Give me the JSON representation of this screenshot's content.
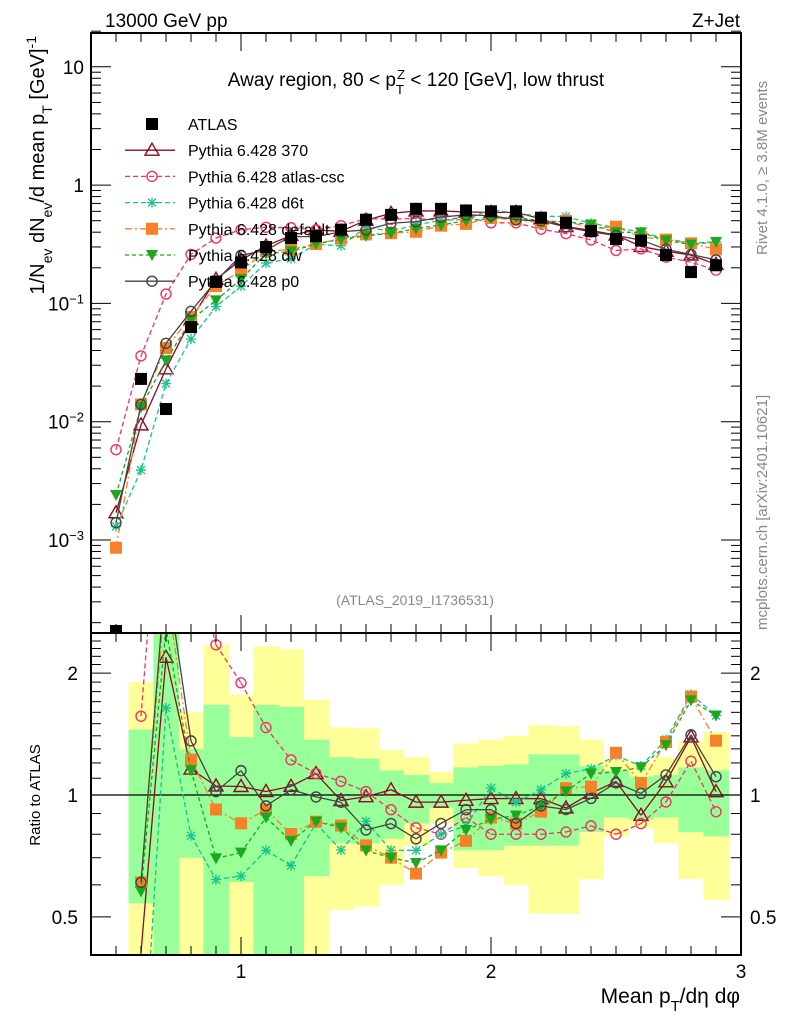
{
  "header": {
    "left": "13000 GeV pp",
    "right": "Z+Jet"
  },
  "side_labels": {
    "rivet": "Rivet 4.1.0, ≥ 3.8M events",
    "mcplots": "mcplots.cern.ch [arXiv:2401.10621]"
  },
  "analysis_id": "(ATLAS_2019_I1736531)",
  "chart_data": {
    "type": "line",
    "title_parts": [
      "Away region, 80 < p",
      "T",
      "Z",
      " < 120 [GeV], low thrust"
    ],
    "ylabel_parts": [
      "1/N",
      "ev",
      " dN",
      "ev",
      "/d mean p",
      "T",
      " [GeV]",
      "-1"
    ],
    "xlabel_parts": [
      "Mean p",
      "T",
      "/dη dφ"
    ],
    "ratio_ylabel": "Ratio to ATLAS",
    "x": [
      0.5,
      0.6,
      0.7,
      0.8,
      0.9,
      1.0,
      1.1,
      1.2,
      1.3,
      1.4,
      1.5,
      1.6,
      1.7,
      1.8,
      1.9,
      2.0,
      2.1,
      2.2,
      2.3,
      2.4,
      2.5,
      2.6,
      2.7,
      2.8,
      2.9
    ],
    "xlim": [
      0.4,
      3.0
    ],
    "ylim": [
      0.00016,
      29
    ],
    "yscale": "log",
    "ratio_ylim": [
      0.4,
      2.5
    ],
    "ratio_yscale": "log",
    "x_ticks": [
      "1",
      "2",
      "3"
    ],
    "y_ticks": [
      {
        "base": "10",
        "exp": ""
      },
      {
        "base": "1",
        "exp": ""
      },
      {
        "base": "10",
        "exp": "−1"
      },
      {
        "base": "10",
        "exp": "−2"
      },
      {
        "base": "10",
        "exp": "−3"
      }
    ],
    "ratio_ticks": [
      "2",
      "1",
      "0.5"
    ],
    "reference": {
      "name": "ATLAS",
      "values": [
        0.00017,
        0.023,
        0.0128,
        0.063,
        0.152,
        0.222,
        0.3,
        0.357,
        0.37,
        0.42,
        0.51,
        0.56,
        0.63,
        0.63,
        0.61,
        0.6,
        0.6,
        0.53,
        0.48,
        0.41,
        0.35,
        0.34,
        0.256,
        0.184,
        0.21
      ],
      "band_inner": [
        null,
        [
          0.54,
          1.45
        ],
        [
          0.35,
          2.6
        ],
        [
          0.7,
          1.3
        ],
        [
          0.35,
          1.67
        ],
        [
          0.61,
          1.39
        ],
        [
          0.35,
          1.67
        ],
        [
          0.35,
          1.65
        ],
        [
          0.63,
          1.37
        ],
        [
          0.76,
          1.24
        ],
        [
          0.76,
          1.23
        ],
        [
          0.78,
          1.15
        ],
        [
          0.85,
          1.12
        ],
        [
          0.93,
          1.07
        ],
        [
          0.73,
          1.17
        ],
        [
          0.73,
          1.18
        ],
        [
          0.75,
          1.19
        ],
        [
          0.75,
          1.26
        ],
        [
          0.75,
          1.26
        ],
        [
          0.81,
          1.18
        ],
        [
          0.88,
          1.15
        ],
        [
          0.87,
          1.11
        ],
        [
          0.88,
          1.12
        ],
        [
          0.81,
          1.17
        ],
        [
          0.79,
          1.15
        ]
      ],
      "band_outer": [
        null,
        [
          0.35,
          1.9
        ],
        [
          0.35,
          2.6
        ],
        [
          0.35,
          1.6
        ],
        [
          0.35,
          2.35
        ],
        [
          0.35,
          1.77
        ],
        [
          0.35,
          2.33
        ],
        [
          0.35,
          2.29
        ],
        [
          0.35,
          1.72
        ],
        [
          0.52,
          1.47
        ],
        [
          0.53,
          1.46
        ],
        [
          0.6,
          1.29
        ],
        [
          0.75,
          1.24
        ],
        [
          0.85,
          1.14
        ],
        [
          0.66,
          1.34
        ],
        [
          0.63,
          1.37
        ],
        [
          0.6,
          1.4
        ],
        [
          0.51,
          1.49
        ],
        [
          0.51,
          1.48
        ],
        [
          0.62,
          1.37
        ],
        [
          0.79,
          1.22
        ],
        [
          0.83,
          1.2
        ],
        [
          0.76,
          1.24
        ],
        [
          0.62,
          1.36
        ],
        [
          0.55,
          1.43
        ]
      ],
      "inner_color": "#99ff99",
      "outer_color": "#ffff99"
    },
    "series": [
      {
        "name": "Pythia 6.428 370",
        "color": "#8c0a24",
        "marker": "triangle-open",
        "dash": "",
        "values": [
          0.0017,
          0.0094,
          0.028,
          0.073,
          0.16,
          0.233,
          0.306,
          0.375,
          0.418,
          0.407,
          0.505,
          0.577,
          0.605,
          0.605,
          0.592,
          0.588,
          0.588,
          0.519,
          0.446,
          0.414,
          0.378,
          0.303,
          0.276,
          0.256,
          0.214
        ]
      },
      {
        "name": "Pythia 6.428 atlas-csc",
        "color": "#f03366",
        "marker": "circle-open",
        "dash": "5,3",
        "values": [
          0.0058,
          0.036,
          0.12,
          0.26,
          0.357,
          0.42,
          0.44,
          0.436,
          0.418,
          0.454,
          0.52,
          0.515,
          0.523,
          0.504,
          0.537,
          0.48,
          0.48,
          0.424,
          0.389,
          0.344,
          0.28,
          0.289,
          0.246,
          0.223,
          0.191
        ]
      },
      {
        "name": "Pythia 6.428 d6t",
        "color": "#17c48a",
        "marker": "star",
        "dash": "5,3",
        "values": [
          0.0013,
          0.0039,
          0.021,
          0.05,
          0.094,
          0.14,
          0.219,
          0.239,
          0.315,
          0.307,
          0.439,
          0.409,
          0.46,
          0.504,
          0.512,
          0.624,
          0.576,
          0.546,
          0.542,
          0.476,
          0.438,
          0.401,
          0.351,
          0.326,
          0.33
        ]
      },
      {
        "name": "Pythia 6.428 default",
        "color": "#f5822a",
        "marker": "square",
        "dash": "7,3,2,3",
        "values": [
          0.00086,
          0.014,
          0.042,
          0.077,
          0.14,
          0.189,
          0.276,
          0.286,
          0.318,
          0.353,
          0.383,
          0.392,
          0.403,
          0.454,
          0.47,
          0.528,
          0.51,
          0.482,
          0.499,
          0.43,
          0.445,
          0.364,
          0.346,
          0.322,
          0.286
        ]
      },
      {
        "name": "Pythia 6.428 dw",
        "color": "#19a81e",
        "marker": "triangle-down",
        "dash": "4,3",
        "values": [
          0.0024,
          0.0133,
          0.033,
          0.0725,
          0.106,
          0.16,
          0.264,
          0.275,
          0.318,
          0.349,
          0.372,
          0.392,
          0.428,
          0.46,
          0.5,
          0.522,
          0.534,
          0.498,
          0.49,
          0.463,
          0.399,
          0.398,
          0.34,
          0.315,
          0.33
        ]
      },
      {
        "name": "Pythia 6.428 p0",
        "color": "#444444",
        "marker": "circle-open",
        "dash": "",
        "values": [
          0.0014,
          0.014,
          0.046,
          0.0857,
          0.155,
          0.255,
          0.282,
          0.368,
          0.366,
          0.403,
          0.418,
          0.476,
          0.491,
          0.536,
          0.561,
          0.552,
          0.51,
          0.498,
          0.442,
          0.402,
          0.375,
          0.343,
          0.287,
          0.259,
          0.233
        ]
      }
    ],
    "legend_placement": "top-left"
  }
}
